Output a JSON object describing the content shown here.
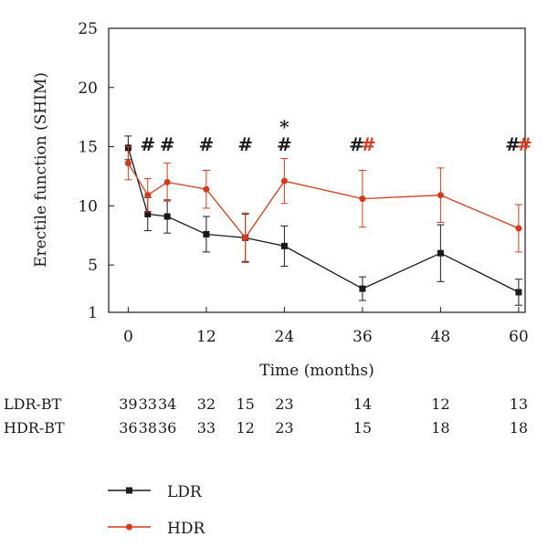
{
  "chart_data": {
    "type": "line",
    "xlabel": "Time (months)",
    "ylabel": "Erectile function (SHIM)",
    "xlim": [
      -3,
      61
    ],
    "ylim": [
      1,
      25
    ],
    "xticks": [
      0,
      12,
      24,
      36,
      48,
      60
    ],
    "yticks": [
      1,
      5,
      10,
      15,
      20,
      25
    ],
    "grid": false,
    "legend_position": "bottom-left",
    "series": [
      {
        "name": "LDR",
        "color": "#1a1a1a",
        "marker": "square",
        "x": [
          0,
          3,
          6,
          12,
          18,
          24,
          36,
          48,
          60
        ],
        "y": [
          14.9,
          9.3,
          9.1,
          7.6,
          7.3,
          6.6,
          3.0,
          6.0,
          2.7
        ],
        "err": [
          1.0,
          1.4,
          1.4,
          1.5,
          2.0,
          1.7,
          1.0,
          2.4,
          1.1
        ]
      },
      {
        "name": "HDR",
        "color": "#d63a1c",
        "marker": "circle",
        "x": [
          0,
          3,
          6,
          12,
          18,
          24,
          36,
          48,
          60
        ],
        "y": [
          13.6,
          10.9,
          12.0,
          11.4,
          7.3,
          12.1,
          10.6,
          10.9,
          8.1
        ],
        "err": [
          1.4,
          1.4,
          1.6,
          1.6,
          2.1,
          1.9,
          2.4,
          2.3,
          2.0
        ]
      }
    ],
    "significance": [
      {
        "x": 3,
        "marks": [
          {
            "symbol": "#",
            "color": "#1a1a1a"
          }
        ]
      },
      {
        "x": 6,
        "marks": [
          {
            "symbol": "#",
            "color": "#1a1a1a"
          }
        ]
      },
      {
        "x": 12,
        "marks": [
          {
            "symbol": "#",
            "color": "#1a1a1a"
          }
        ]
      },
      {
        "x": 18,
        "marks": [
          {
            "symbol": "#",
            "color": "#1a1a1a"
          }
        ]
      },
      {
        "x": 24,
        "marks": [
          {
            "symbol": "#",
            "color": "#1a1a1a"
          }
        ],
        "top": "*"
      },
      {
        "x": 36,
        "marks": [
          {
            "symbol": "#",
            "color": "#1a1a1a"
          },
          {
            "symbol": "#",
            "color": "#d63a1c"
          }
        ]
      },
      {
        "x": 60,
        "marks": [
          {
            "symbol": "#",
            "color": "#1a1a1a"
          },
          {
            "symbol": "#",
            "color": "#d63a1c"
          }
        ]
      }
    ],
    "patient_counts": [
      {
        "label": "LDR-BT",
        "values": [
          "39",
          "33",
          "34",
          "32",
          "15",
          "23",
          "14",
          "12",
          "13"
        ]
      },
      {
        "label": "HDR-BT",
        "values": [
          "36",
          "38",
          "36",
          "33",
          "12",
          "23",
          "15",
          "18",
          "18"
        ]
      }
    ]
  }
}
